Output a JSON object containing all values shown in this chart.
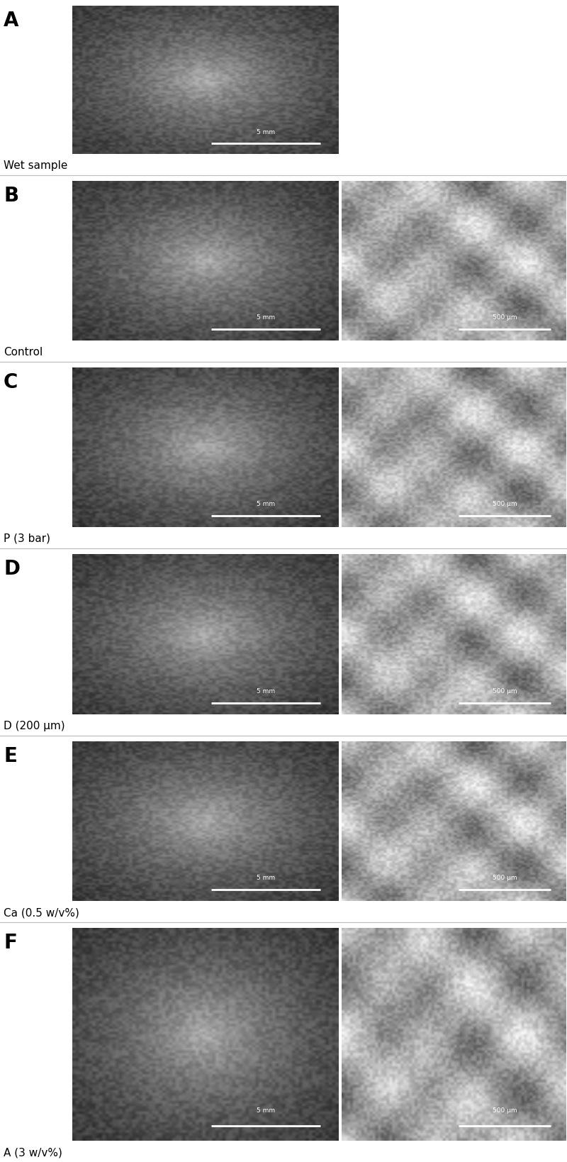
{
  "figure_width": 8.0,
  "figure_height": 16.38,
  "dpi": 100,
  "background_color": "#ffffff",
  "label_fontsize": 20,
  "sublabel_fontsize": 11,
  "label_color": "#000000",
  "separator_color": "#bbbbbb",
  "separator_linewidth": 0.8,
  "panels": [
    {
      "label": "A",
      "sublabel": "Wet sample",
      "num_images": 1,
      "has_separator_above": false,
      "scalebars": [
        "5 mm"
      ],
      "img_bg": [
        "#1a1a14"
      ],
      "is_sem": [
        false
      ]
    },
    {
      "label": "B",
      "sublabel": "Control",
      "num_images": 2,
      "has_separator_above": true,
      "scalebars": [
        "5 mm",
        "500 μm"
      ],
      "img_bg": [
        "#0d0d0a",
        "#7a7a7a"
      ],
      "is_sem": [
        false,
        true
      ]
    },
    {
      "label": "C",
      "sublabel": "P (3 bar)",
      "num_images": 2,
      "has_separator_above": true,
      "scalebars": [
        "5 mm",
        "500 μm"
      ],
      "img_bg": [
        "#0d0d08",
        "#4a4a4a"
      ],
      "is_sem": [
        false,
        true
      ]
    },
    {
      "label": "D",
      "sublabel": "D (200 μm)",
      "num_images": 2,
      "has_separator_above": true,
      "scalebars": [
        "5 mm",
        "500 μm"
      ],
      "img_bg": [
        "#0d100d",
        "#6a6a6a"
      ],
      "is_sem": [
        false,
        true
      ]
    },
    {
      "label": "E",
      "sublabel": "Ca (0.5 w/v%)",
      "num_images": 2,
      "has_separator_above": true,
      "scalebars": [
        "5 mm",
        "500 μm"
      ],
      "img_bg": [
        "#1a100a",
        "#6a6a6a"
      ],
      "is_sem": [
        false,
        true
      ]
    },
    {
      "label": "F",
      "sublabel": "A (3 w/v%)",
      "num_images": 2,
      "has_separator_above": true,
      "scalebars": [
        "5 mm",
        "500 μm"
      ],
      "img_bg": [
        "#0a0f1a",
        "#7a7a7a"
      ],
      "is_sem": [
        false,
        true
      ]
    }
  ]
}
